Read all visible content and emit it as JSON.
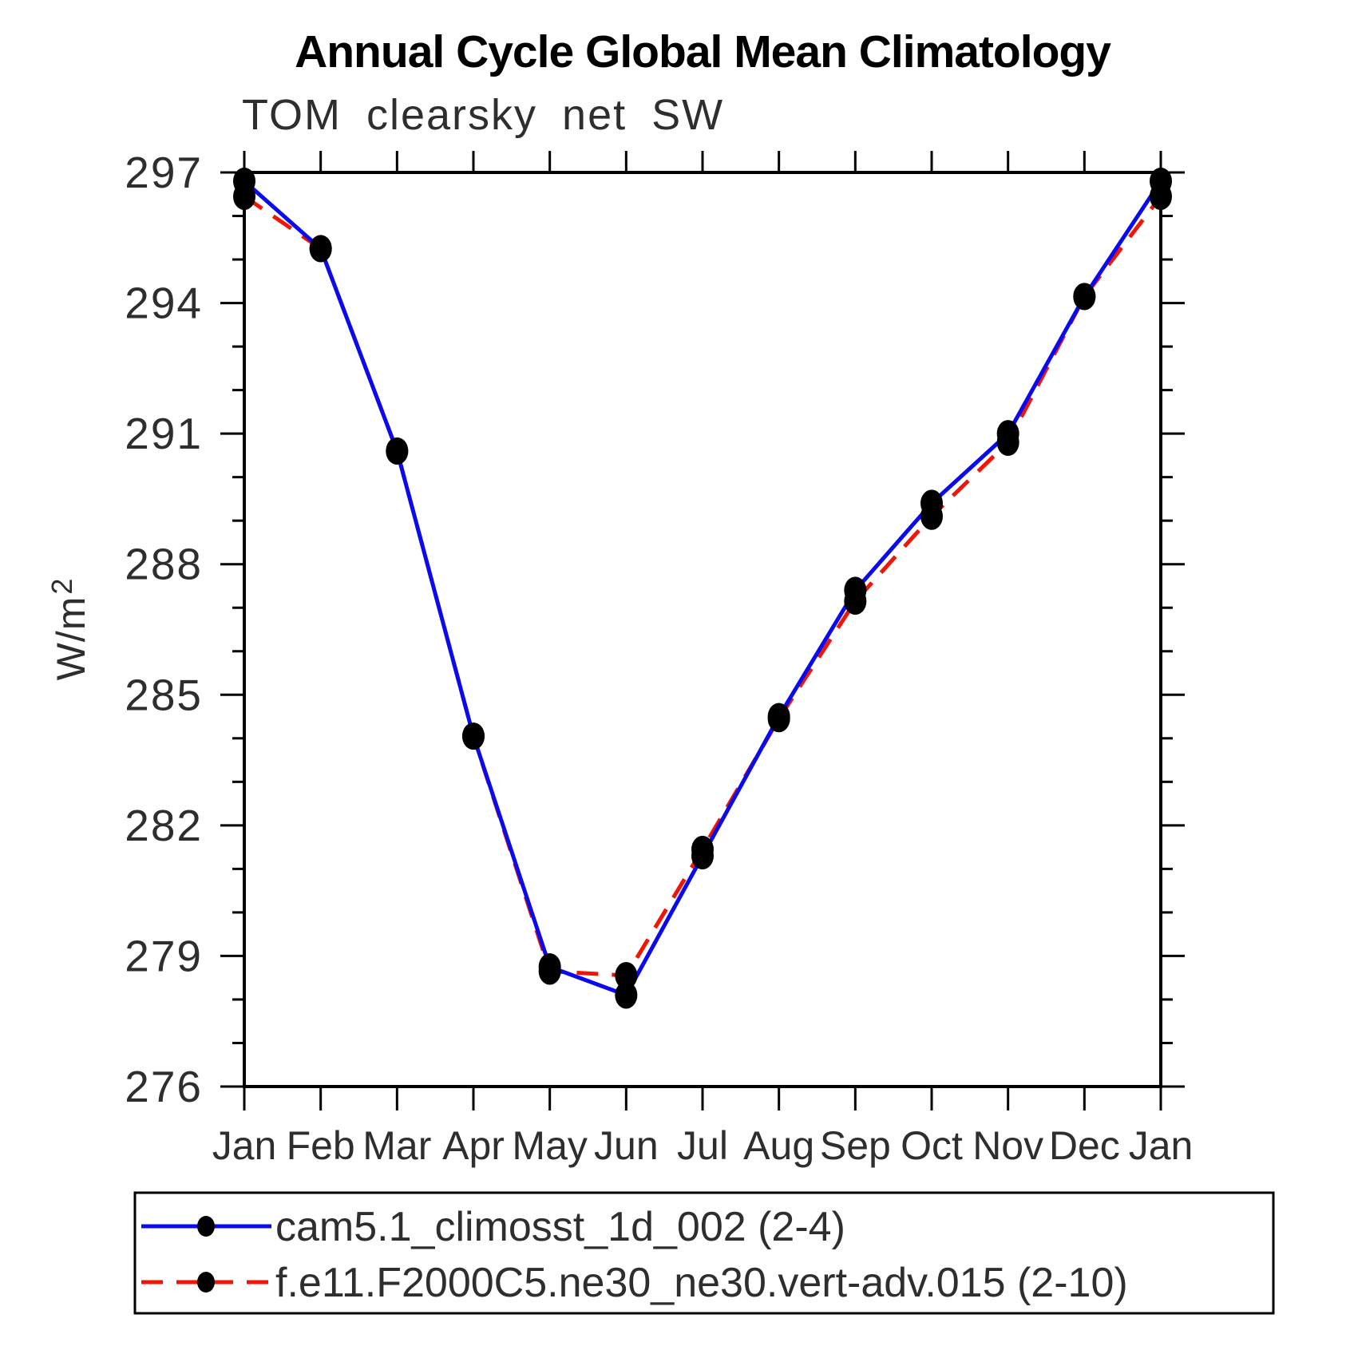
{
  "chart_data": {
    "type": "line",
    "title": "Annual Cycle Global Mean Climatology",
    "subtitle": "TOM clearsky net SW",
    "ylabel": "W/m",
    "ylabel_sup": "2",
    "categories": [
      "Jan",
      "Feb",
      "Mar",
      "Apr",
      "May",
      "Jun",
      "Jul",
      "Aug",
      "Sep",
      "Oct",
      "Nov",
      "Dec",
      "Jan"
    ],
    "ylim": [
      276,
      297
    ],
    "ytick_major_step": 3,
    "ytick_minor_step": 1,
    "ytick_major_values": [
      276,
      279,
      282,
      285,
      288,
      291,
      294,
      297
    ],
    "grid": false,
    "legend_position": "bottom",
    "axis_color": "#000000",
    "marker_color": "#000000",
    "series": [
      {
        "name": "cam5.1_climosst_1d_002 (2-4)",
        "color": "#0a0af0",
        "style": "solid",
        "marker": "black-dot",
        "values": [
          296.8,
          295.25,
          290.6,
          284.05,
          278.75,
          278.1,
          281.3,
          284.5,
          287.4,
          289.4,
          291.0,
          294.15,
          296.8
        ]
      },
      {
        "name": "f.e11.F2000C5.ne30_ne30.vert-adv.015 (2-10)",
        "color": "#f21505",
        "style": "dashed",
        "marker": "black-dot",
        "values": [
          296.45,
          295.25,
          290.6,
          284.05,
          278.65,
          278.55,
          281.45,
          284.45,
          287.15,
          289.1,
          290.8,
          294.15,
          296.45
        ]
      }
    ]
  }
}
